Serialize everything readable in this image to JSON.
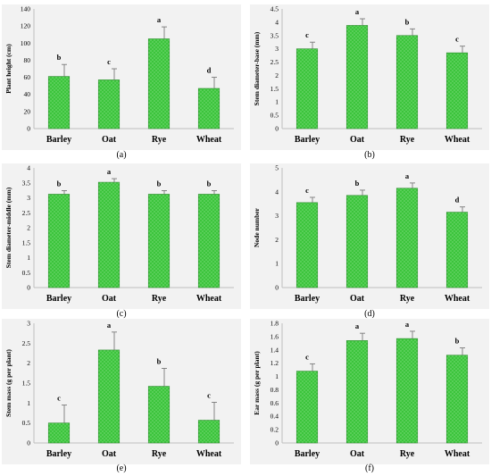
{
  "chart_data": [
    {
      "type": "bar",
      "panel": "(a)",
      "categories": [
        "Barley",
        "Oat",
        "Rye",
        "Wheat"
      ],
      "values": [
        61,
        57,
        105,
        47
      ],
      "errors": [
        14,
        13,
        14,
        13
      ],
      "letters": [
        "b",
        "c",
        "a",
        "d"
      ],
      "ylabel": "Plant height (cm)",
      "ylim": [
        0,
        140
      ],
      "yticks": [
        0,
        20,
        40,
        60,
        80,
        100,
        120,
        140
      ],
      "ytick_labels": [
        "0",
        "20",
        "40",
        "60",
        "80",
        "100",
        "120",
        "140"
      ]
    },
    {
      "type": "bar",
      "panel": "(b)",
      "categories": [
        "Barley",
        "Oat",
        "Rye",
        "Wheat"
      ],
      "values": [
        3.0,
        3.88,
        3.5,
        2.85
      ],
      "errors": [
        0.25,
        0.25,
        0.25,
        0.25
      ],
      "letters": [
        "c",
        "a",
        "b",
        "c"
      ],
      "ylabel": "Stem diameter-base (mm)",
      "ylim": [
        0,
        4.5
      ],
      "yticks": [
        0,
        0.5,
        1,
        1.5,
        2,
        2.5,
        3,
        3.5,
        4,
        4.5
      ],
      "ytick_labels": [
        "0",
        "0.5",
        "1",
        "1.5",
        "2",
        "2.5",
        "3",
        "3.5",
        "4",
        "4.5"
      ]
    },
    {
      "type": "bar",
      "panel": "(c)",
      "categories": [
        "Barley",
        "Oat",
        "Rye",
        "Wheat"
      ],
      "values": [
        3.12,
        3.52,
        3.12,
        3.12
      ],
      "errors": [
        0.12,
        0.12,
        0.12,
        0.12
      ],
      "letters": [
        "b",
        "a",
        "b",
        "b"
      ],
      "ylabel": "Stem diameter-middle (mm)",
      "ylim": [
        0,
        4
      ],
      "yticks": [
        0,
        0.5,
        1,
        1.5,
        2,
        2.5,
        3,
        3.5,
        4
      ],
      "ytick_labels": [
        "0",
        "0.5",
        "1",
        "1.5",
        "2",
        "2.5",
        "3",
        "3.5",
        "4"
      ]
    },
    {
      "type": "bar",
      "panel": "(d)",
      "categories": [
        "Barley",
        "Oat",
        "Rye",
        "Wheat"
      ],
      "values": [
        3.55,
        3.85,
        4.15,
        3.15
      ],
      "errors": [
        0.22,
        0.22,
        0.22,
        0.22
      ],
      "letters": [
        "c",
        "b",
        "a",
        "d"
      ],
      "ylabel": "Node number",
      "ylim": [
        0,
        5
      ],
      "yticks": [
        0,
        1,
        2,
        3,
        4,
        5
      ],
      "ytick_labels": [
        "0",
        "1",
        "2",
        "3",
        "4",
        "5"
      ]
    },
    {
      "type": "bar",
      "panel": "(e)",
      "categories": [
        "Barley",
        "Oat",
        "Rye",
        "Wheat"
      ],
      "values": [
        0.5,
        2.33,
        1.42,
        0.57
      ],
      "errors": [
        0.45,
        0.45,
        0.45,
        0.45
      ],
      "letters": [
        "c",
        "a",
        "b",
        "c"
      ],
      "ylabel": "Stem mass (g per plant)",
      "ylim": [
        0,
        3
      ],
      "yticks": [
        0,
        0.5,
        1,
        1.5,
        2,
        2.5,
        3
      ],
      "ytick_labels": [
        "0",
        "0.5",
        "1",
        "1.5",
        "2",
        "2.5",
        "3"
      ]
    },
    {
      "type": "bar",
      "panel": "(f)",
      "categories": [
        "Barley",
        "Oat",
        "Rye",
        "Wheat"
      ],
      "values": [
        1.08,
        1.54,
        1.57,
        1.32
      ],
      "errors": [
        0.11,
        0.11,
        0.11,
        0.11
      ],
      "letters": [
        "c",
        "a",
        "a",
        "b"
      ],
      "ylabel": "Ear mass (g per plant)",
      "ylim": [
        0,
        1.8
      ],
      "yticks": [
        0,
        0.2,
        0.4,
        0.6,
        0.8,
        1,
        1.2,
        1.4,
        1.6,
        1.8
      ],
      "ytick_labels": [
        "0",
        "0.2",
        "0.4",
        "0.6",
        "0.8",
        "1",
        "1.2",
        "1.4",
        "1.6",
        "1.8"
      ]
    }
  ],
  "colors": {
    "panel_background": "#f2f2f2",
    "bar_fill": "#3cc43c",
    "bar_dot": "#9be89b",
    "bar_edge": "#2e8b2e",
    "error_bar": "#7a7a7a"
  }
}
